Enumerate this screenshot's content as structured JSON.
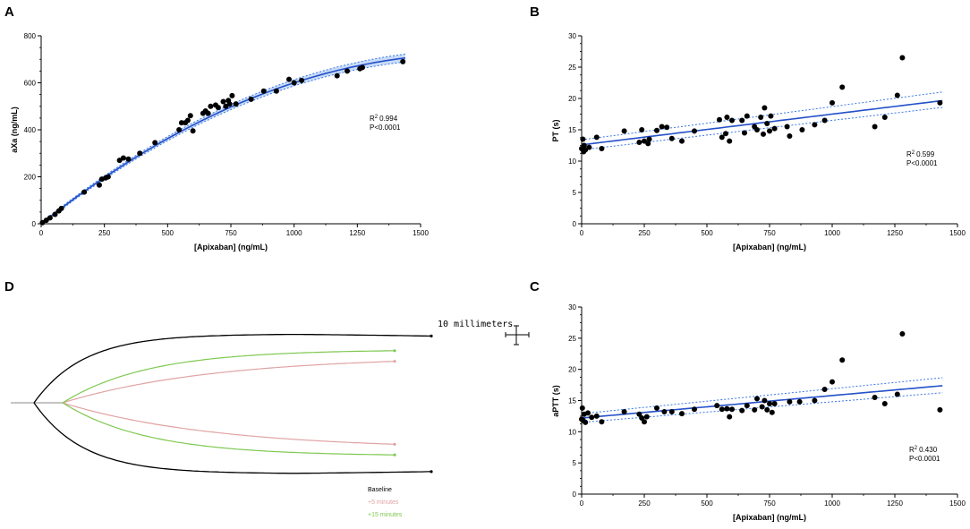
{
  "colors": {
    "point": "#000000",
    "fit": "#2450c8",
    "ci": "#3b78e7",
    "band": "#bcd3f5",
    "baseline": "#000000",
    "plus5": "#e0a3a3",
    "plus15": "#7ec850"
  },
  "chart_data": [
    {
      "panel": "A",
      "type": "scatter",
      "xlabel": "[Apixaban] (ng/mL)",
      "ylabel": "aXa (ng/mL)",
      "xlim": [
        0,
        1500
      ],
      "ylim": [
        0,
        800
      ],
      "xticks": [
        0,
        250,
        500,
        750,
        1000,
        1250,
        1500
      ],
      "yticks": [
        0,
        200,
        400,
        600,
        800
      ],
      "stats": {
        "r2_prefix": "R",
        "r2_sup": "2",
        "r2_value": "0.994",
        "p_value": "P<0.0001"
      },
      "fit": {
        "kind": "quadratic",
        "coef": [
          0,
          0.85,
          -0.00025
        ],
        "ci": 12
      },
      "points": [
        [
          5,
          5
        ],
        [
          20,
          15
        ],
        [
          35,
          25
        ],
        [
          55,
          40
        ],
        [
          70,
          55
        ],
        [
          80,
          65
        ],
        [
          170,
          135
        ],
        [
          230,
          165
        ],
        [
          240,
          190
        ],
        [
          255,
          195
        ],
        [
          265,
          200
        ],
        [
          310,
          270
        ],
        [
          325,
          280
        ],
        [
          345,
          275
        ],
        [
          390,
          300
        ],
        [
          450,
          345
        ],
        [
          545,
          400
        ],
        [
          555,
          430
        ],
        [
          570,
          430
        ],
        [
          580,
          440
        ],
        [
          590,
          460
        ],
        [
          600,
          395
        ],
        [
          640,
          470
        ],
        [
          650,
          480
        ],
        [
          660,
          470
        ],
        [
          670,
          500
        ],
        [
          690,
          505
        ],
        [
          700,
          495
        ],
        [
          720,
          520
        ],
        [
          730,
          500
        ],
        [
          740,
          525
        ],
        [
          745,
          510
        ],
        [
          755,
          545
        ],
        [
          770,
          510
        ],
        [
          830,
          530
        ],
        [
          880,
          565
        ],
        [
          930,
          565
        ],
        [
          980,
          615
        ],
        [
          1000,
          600
        ],
        [
          1030,
          610
        ],
        [
          1170,
          630
        ],
        [
          1210,
          650
        ],
        [
          1260,
          660
        ],
        [
          1270,
          665
        ],
        [
          1430,
          690
        ]
      ]
    },
    {
      "panel": "B",
      "type": "scatter",
      "xlabel": "[Apixaban] (ng/mL)",
      "ylabel": "PT (s)",
      "xlim": [
        0,
        1500
      ],
      "ylim": [
        0,
        30
      ],
      "xticks": [
        0,
        250,
        500,
        750,
        1000,
        1250,
        1500
      ],
      "yticks": [
        0,
        5,
        10,
        15,
        20,
        25,
        30
      ],
      "stats": {
        "r2_prefix": "R",
        "r2_sup": "2",
        "r2_value": "0.599",
        "p_value": "P<0.0001"
      },
      "fit": {
        "kind": "linear",
        "coef": [
          12.6,
          0.0049
        ],
        "ci_lo": [
          11.8,
          0.0047
        ],
        "ci_hi": [
          13.4,
          0.0053
        ]
      },
      "points": [
        [
          0,
          12
        ],
        [
          5,
          13.5
        ],
        [
          8,
          11.5
        ],
        [
          10,
          12.5
        ],
        [
          15,
          11.8
        ],
        [
          30,
          12.2
        ],
        [
          60,
          13.8
        ],
        [
          80,
          12
        ],
        [
          170,
          14.8
        ],
        [
          230,
          13
        ],
        [
          240,
          15
        ],
        [
          250,
          13.2
        ],
        [
          265,
          12.8
        ],
        [
          270,
          13.5
        ],
        [
          300,
          14.9
        ],
        [
          320,
          15.5
        ],
        [
          340,
          15.4
        ],
        [
          360,
          13.6
        ],
        [
          400,
          13.2
        ],
        [
          450,
          14.8
        ],
        [
          550,
          16.6
        ],
        [
          560,
          13.8
        ],
        [
          575,
          14.4
        ],
        [
          580,
          17
        ],
        [
          590,
          13.2
        ],
        [
          600,
          16.5
        ],
        [
          640,
          16.5
        ],
        [
          650,
          14.5
        ],
        [
          660,
          17.2
        ],
        [
          690,
          15.5
        ],
        [
          700,
          15
        ],
        [
          715,
          17
        ],
        [
          725,
          14.3
        ],
        [
          730,
          18.5
        ],
        [
          740,
          16
        ],
        [
          750,
          14.8
        ],
        [
          755,
          17.2
        ],
        [
          770,
          15.2
        ],
        [
          820,
          15.5
        ],
        [
          830,
          14
        ],
        [
          880,
          15
        ],
        [
          930,
          15.8
        ],
        [
          970,
          16.5
        ],
        [
          1000,
          19.3
        ],
        [
          1040,
          21.8
        ],
        [
          1170,
          15.5
        ],
        [
          1210,
          17
        ],
        [
          1260,
          20.5
        ],
        [
          1280,
          26.5
        ],
        [
          1430,
          19.3
        ]
      ]
    },
    {
      "panel": "C",
      "type": "scatter",
      "xlabel": "[Apixaban] (ng/mL)",
      "ylabel": "aPTT (s)",
      "xlim": [
        0,
        1500
      ],
      "ylim": [
        0,
        30
      ],
      "xticks": [
        0,
        250,
        500,
        750,
        1000,
        1250,
        1500
      ],
      "yticks": [
        0,
        5,
        10,
        15,
        20,
        25,
        30
      ],
      "stats": {
        "r2_prefix": "R",
        "r2_sup": "2",
        "r2_value": "0.430",
        "p_value": "P<0.0001"
      },
      "fit": {
        "kind": "linear",
        "coef": [
          12.2,
          0.0036
        ],
        "ci_lo": [
          11.5,
          0.0033
        ],
        "ci_hi": [
          12.9,
          0.004
        ]
      },
      "points": [
        [
          0,
          12
        ],
        [
          3,
          13.8
        ],
        [
          6,
          11.8
        ],
        [
          10,
          12.8
        ],
        [
          15,
          11.5
        ],
        [
          25,
          13
        ],
        [
          40,
          12.3
        ],
        [
          60,
          12.5
        ],
        [
          80,
          11.6
        ],
        [
          170,
          13.2
        ],
        [
          230,
          12.8
        ],
        [
          240,
          12.2
        ],
        [
          250,
          11.6
        ],
        [
          260,
          12.4
        ],
        [
          300,
          13.8
        ],
        [
          330,
          13.2
        ],
        [
          360,
          13.2
        ],
        [
          400,
          12.9
        ],
        [
          450,
          13.6
        ],
        [
          540,
          14.2
        ],
        [
          560,
          13.6
        ],
        [
          580,
          13.7
        ],
        [
          590,
          12.4
        ],
        [
          600,
          13.6
        ],
        [
          640,
          13.4
        ],
        [
          660,
          14.2
        ],
        [
          690,
          13.5
        ],
        [
          700,
          15.3
        ],
        [
          720,
          14
        ],
        [
          730,
          15
        ],
        [
          740,
          13.5
        ],
        [
          750,
          14.5
        ],
        [
          760,
          13.1
        ],
        [
          770,
          14.5
        ],
        [
          830,
          14.8
        ],
        [
          870,
          14.8
        ],
        [
          930,
          15
        ],
        [
          970,
          16.8
        ],
        [
          1000,
          18
        ],
        [
          1040,
          21.5
        ],
        [
          1170,
          15.5
        ],
        [
          1210,
          14.5
        ],
        [
          1260,
          16
        ],
        [
          1280,
          25.7
        ],
        [
          1430,
          13.5
        ]
      ]
    },
    {
      "panel": "D",
      "type": "line",
      "scale_label": "10 millimeters",
      "legend": [
        "Baseline",
        "+5 minutes",
        "+15 minutes"
      ],
      "traces": [
        {
          "name": "Baseline",
          "amplitude_mm": 22,
          "end_fraction": 1.0
        },
        {
          "name": "+5 minutes",
          "amplitude_mm": 14.5,
          "end_fraction": 0.9
        },
        {
          "name": "+15 minutes",
          "amplitude_mm": 16.5,
          "end_fraction": 0.9
        }
      ]
    }
  ]
}
